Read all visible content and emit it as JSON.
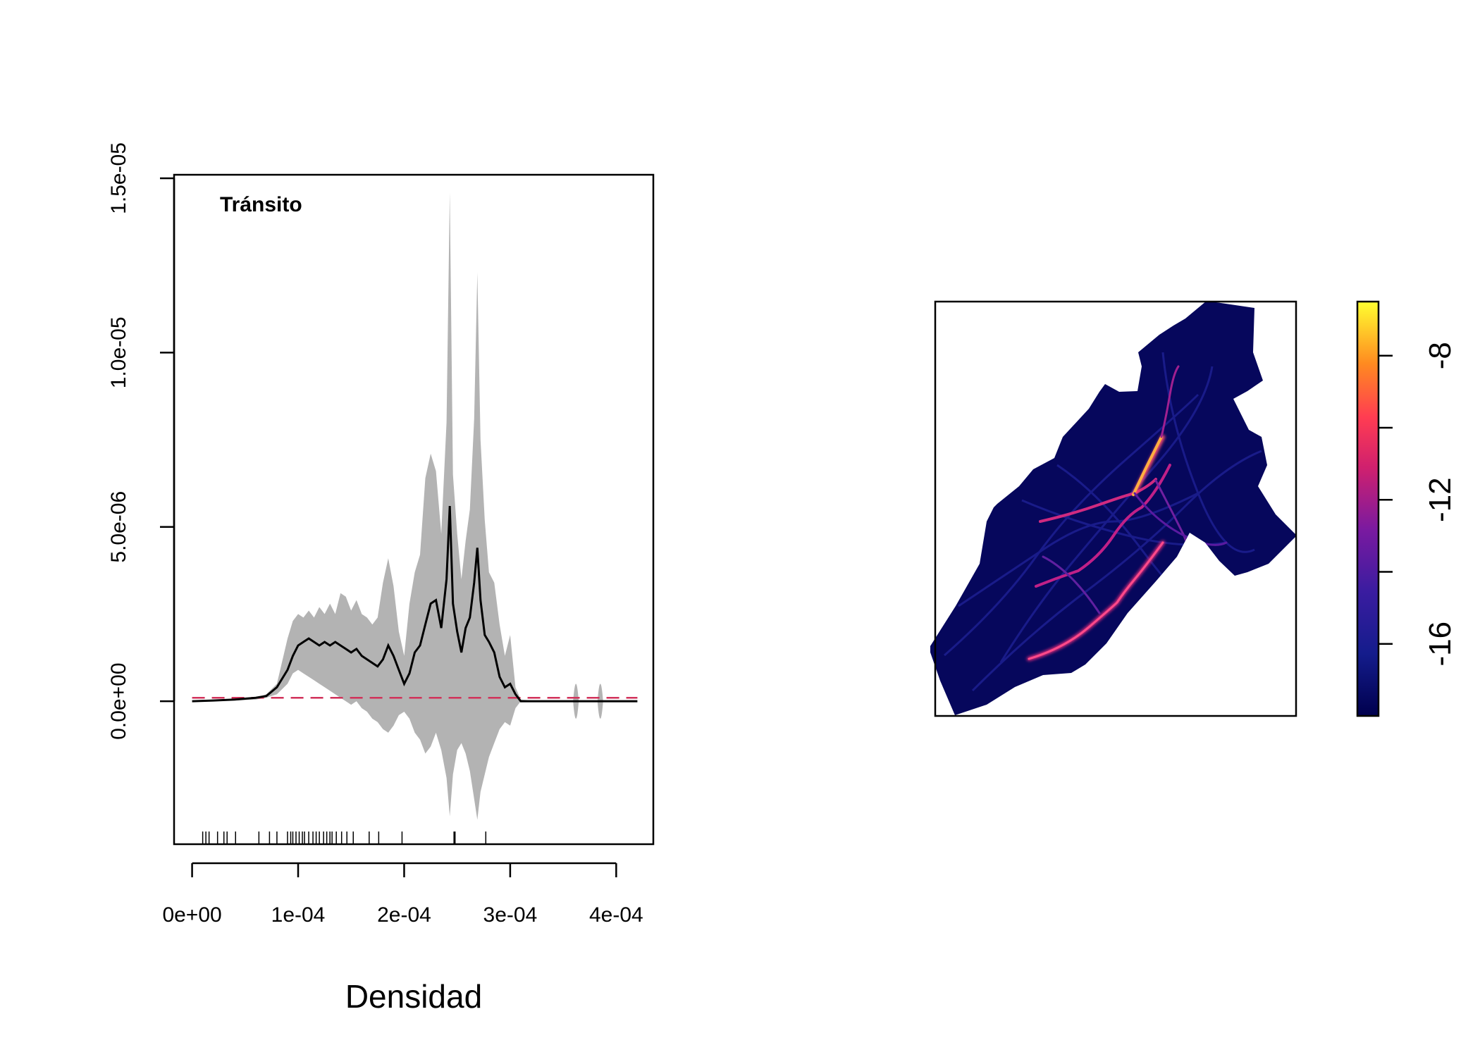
{
  "chart_data": [
    {
      "type": "line",
      "title": "Tránsito",
      "xlabel": "Densidad",
      "ylabel": "",
      "xlim": [
        -1.7e-05,
        0.000435
      ],
      "ylim": [
        -4.1e-06,
        1.51e-05
      ],
      "x_ticks": [
        0,
        0.0001,
        0.0002,
        0.0003,
        0.0004
      ],
      "x_tick_labels": [
        "0e+00",
        "1e-04",
        "2e-04",
        "3e-04",
        "4e-04"
      ],
      "y_ticks": [
        0,
        5e-06,
        1e-05,
        1.5e-05
      ],
      "y_tick_labels": [
        "0.0e+00",
        "5.0e-06",
        "1.0e-05",
        "1.5e-05"
      ],
      "reference_line": {
        "y": 1e-07,
        "style": "dashed",
        "color": "#d1325a"
      },
      "line_color": "#000000",
      "band_color": "#b3b3b3",
      "series": [
        {
          "x": [
            0,
            2e-05,
            4e-05,
            6e-05,
            7e-05,
            8e-05,
            9e-05,
            9.5e-05,
            0.0001,
            0.000105,
            0.00011,
            0.000115,
            0.00012,
            0.000125,
            0.00013,
            0.000135,
            0.00014,
            0.000145,
            0.00015,
            0.000155,
            0.00016,
            0.000165,
            0.00017,
            0.000175,
            0.00018,
            0.000185,
            0.00019,
            0.000195,
            0.0002,
            0.000205,
            0.00021,
            0.000215,
            0.00022,
            0.000225,
            0.00023,
            0.000235,
            0.00024,
            0.000243,
            0.000246,
            0.00025,
            0.000254,
            0.000258,
            0.000262,
            0.000266,
            0.000269,
            0.000272,
            0.000276,
            0.00028,
            0.000285,
            0.00029,
            0.000295,
            0.0003,
            0.000305,
            0.00031,
            0.00033,
            0.00036,
            0.0004,
            0.00042
          ],
          "mid": [
            0,
            2e-08,
            5e-08,
            1e-07,
            1.5e-07,
            4e-07,
            9e-07,
            1.3e-06,
            1.6e-06,
            1.7e-06,
            1.8e-06,
            1.7e-06,
            1.6e-06,
            1.7e-06,
            1.6e-06,
            1.7e-06,
            1.6e-06,
            1.5e-06,
            1.4e-06,
            1.5e-06,
            1.3e-06,
            1.2e-06,
            1.1e-06,
            1e-06,
            1.2e-06,
            1.6e-06,
            1.3e-06,
            9e-07,
            5e-07,
            8e-07,
            1.4e-06,
            1.6e-06,
            2.2e-06,
            2.8e-06,
            2.9e-06,
            2.1e-06,
            3.5e-06,
            5.6e-06,
            2.8e-06,
            2e-06,
            1.4e-06,
            2.1e-06,
            2.4e-06,
            3.4e-06,
            4.4e-06,
            2.9e-06,
            1.9e-06,
            1.7e-06,
            1.4e-06,
            7e-07,
            4e-07,
            5e-07,
            2e-07,
            0,
            0,
            0,
            0,
            0
          ],
          "upper": [
            0,
            2e-08,
            5e-08,
            1e-07,
            2e-07,
            5e-07,
            1.8e-06,
            2.3e-06,
            2.5e-06,
            2.4e-06,
            2.6e-06,
            2.4e-06,
            2.7e-06,
            2.5e-06,
            2.8e-06,
            2.5e-06,
            3.1e-06,
            3e-06,
            2.6e-06,
            2.9e-06,
            2.5e-06,
            2.4e-06,
            2.2e-06,
            2.4e-06,
            3.4e-06,
            4.1e-06,
            3.3e-06,
            2e-06,
            1.3e-06,
            2.8e-06,
            3.7e-06,
            4.2e-06,
            6.4e-06,
            7.1e-06,
            6.6e-06,
            4.8e-06,
            8e-06,
            1.46e-05,
            6.5e-06,
            4.8e-06,
            3.5e-06,
            4.6e-06,
            5.5e-06,
            8.1e-06,
            1.23e-05,
            7.5e-06,
            5.2e-06,
            3.7e-06,
            3.4e-06,
            2.2e-06,
            1.3e-06,
            1.9e-06,
            4e-07,
            5e-08,
            0,
            0,
            0,
            0
          ],
          "lower": [
            0,
            1e-08,
            2e-08,
            5e-08,
            1e-07,
            2e-07,
            5e-07,
            8e-07,
            9e-07,
            8e-07,
            7e-07,
            6e-07,
            5e-07,
            4e-07,
            3e-07,
            2e-07,
            1e-07,
            0,
            -1e-07,
            0,
            -2e-07,
            -3e-07,
            -5e-07,
            -6e-07,
            -8e-07,
            -9e-07,
            -7e-07,
            -4e-07,
            -3e-07,
            -5e-07,
            -9e-07,
            -1.1e-06,
            -1.5e-06,
            -1.3e-06,
            -9e-07,
            -1.4e-06,
            -2.2e-06,
            -3.3e-06,
            -2.1e-06,
            -1.4e-06,
            -1.2e-06,
            -1.5e-06,
            -2e-06,
            -2.8e-06,
            -3.4e-06,
            -2.6e-06,
            -2.1e-06,
            -1.6e-06,
            -1.2e-06,
            -8e-07,
            -6e-07,
            -7e-07,
            -2e-07,
            0,
            0,
            0,
            0,
            0
          ]
        }
      ],
      "isolated_bands": [
        {
          "x": 0.000362,
          "upper": 8e-07,
          "lower": -8e-07
        },
        {
          "x": 0.000385,
          "upper": 8e-07,
          "lower": -8e-07
        }
      ],
      "rug": [
        1e-05,
        1.3e-05,
        1.6e-05,
        2.4e-05,
        3e-05,
        3.3e-05,
        4.1e-05,
        6.3e-05,
        7.3e-05,
        8e-05,
        9e-05,
        9.3e-05,
        9.5e-05,
        9.8e-05,
        0.000101,
        0.000104,
        0.000106,
        0.00011,
        0.000114,
        0.000117,
        0.00012,
        0.000124,
        0.000127,
        0.00013,
        0.000132,
        0.000136,
        0.000141,
        0.000146,
        0.000152,
        0.000167,
        0.000176,
        0.000198,
        0.000247,
        0.000248,
        0.000277
      ]
    },
    {
      "type": "heatmap",
      "title": "",
      "description_colors": [
        "#00004d",
        "#1a1090",
        "#5a14a8",
        "#a0229a",
        "#e2306e",
        "#ff5a3c",
        "#ffa020",
        "#ffff30"
      ],
      "colorbar": {
        "range": [
          -18,
          -6.5
        ],
        "ticks": [
          -8,
          -10,
          -12,
          -14,
          -16
        ],
        "tick_labels": [
          "-8",
          "",
          "-12",
          "",
          "-16"
        ]
      }
    }
  ]
}
